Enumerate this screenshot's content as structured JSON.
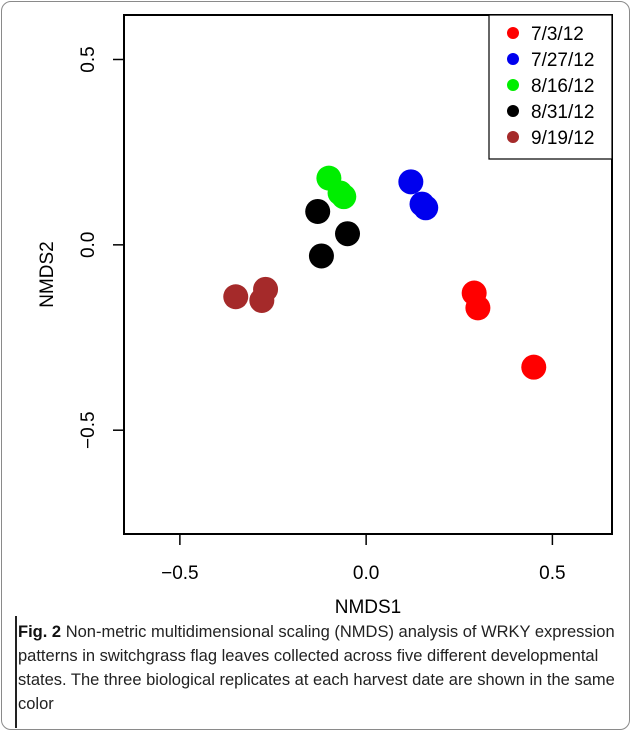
{
  "figure": {
    "label": "Fig. 2",
    "caption": "Non-metric multidimensional scaling (NMDS) analysis of WRKY expression patterns in switchgrass flag leaves collected across five different developmental states. The three biological replicates at each harvest date are shown in the same color"
  },
  "chart_data": {
    "type": "scatter",
    "xlabel": "NMDS1",
    "ylabel": "NMDS2",
    "xlim": [
      -0.65,
      0.66
    ],
    "ylim": [
      -0.78,
      0.62
    ],
    "xticks": [
      -0.5,
      0.0,
      0.5
    ],
    "xtick_labels": [
      "−0.5",
      "0.0",
      "0.5"
    ],
    "yticks": [
      -0.5,
      0.0,
      0.5
    ],
    "ytick_labels": [
      "−0.5",
      "0.0",
      "0.5"
    ],
    "grid": false,
    "legend_position": "top-right",
    "series": [
      {
        "name": "7/3/12",
        "color": "#ff0000",
        "points": [
          [
            0.29,
            -0.13
          ],
          [
            0.3,
            -0.17
          ],
          [
            0.45,
            -0.33
          ]
        ]
      },
      {
        "name": "7/27/12",
        "color": "#0000ee",
        "points": [
          [
            0.12,
            0.17
          ],
          [
            0.15,
            0.11
          ],
          [
            0.16,
            0.1
          ]
        ]
      },
      {
        "name": "8/16/12",
        "color": "#00ee00",
        "points": [
          [
            -0.1,
            0.18
          ],
          [
            -0.07,
            0.14
          ],
          [
            -0.06,
            0.13
          ]
        ]
      },
      {
        "name": "8/31/12",
        "color": "#000000",
        "points": [
          [
            -0.13,
            0.09
          ],
          [
            -0.05,
            0.03
          ],
          [
            -0.12,
            -0.03
          ]
        ]
      },
      {
        "name": "9/19/12",
        "color": "#a52a2a",
        "points": [
          [
            -0.35,
            -0.14
          ],
          [
            -0.28,
            -0.15
          ],
          [
            -0.27,
            -0.12
          ]
        ]
      }
    ]
  }
}
